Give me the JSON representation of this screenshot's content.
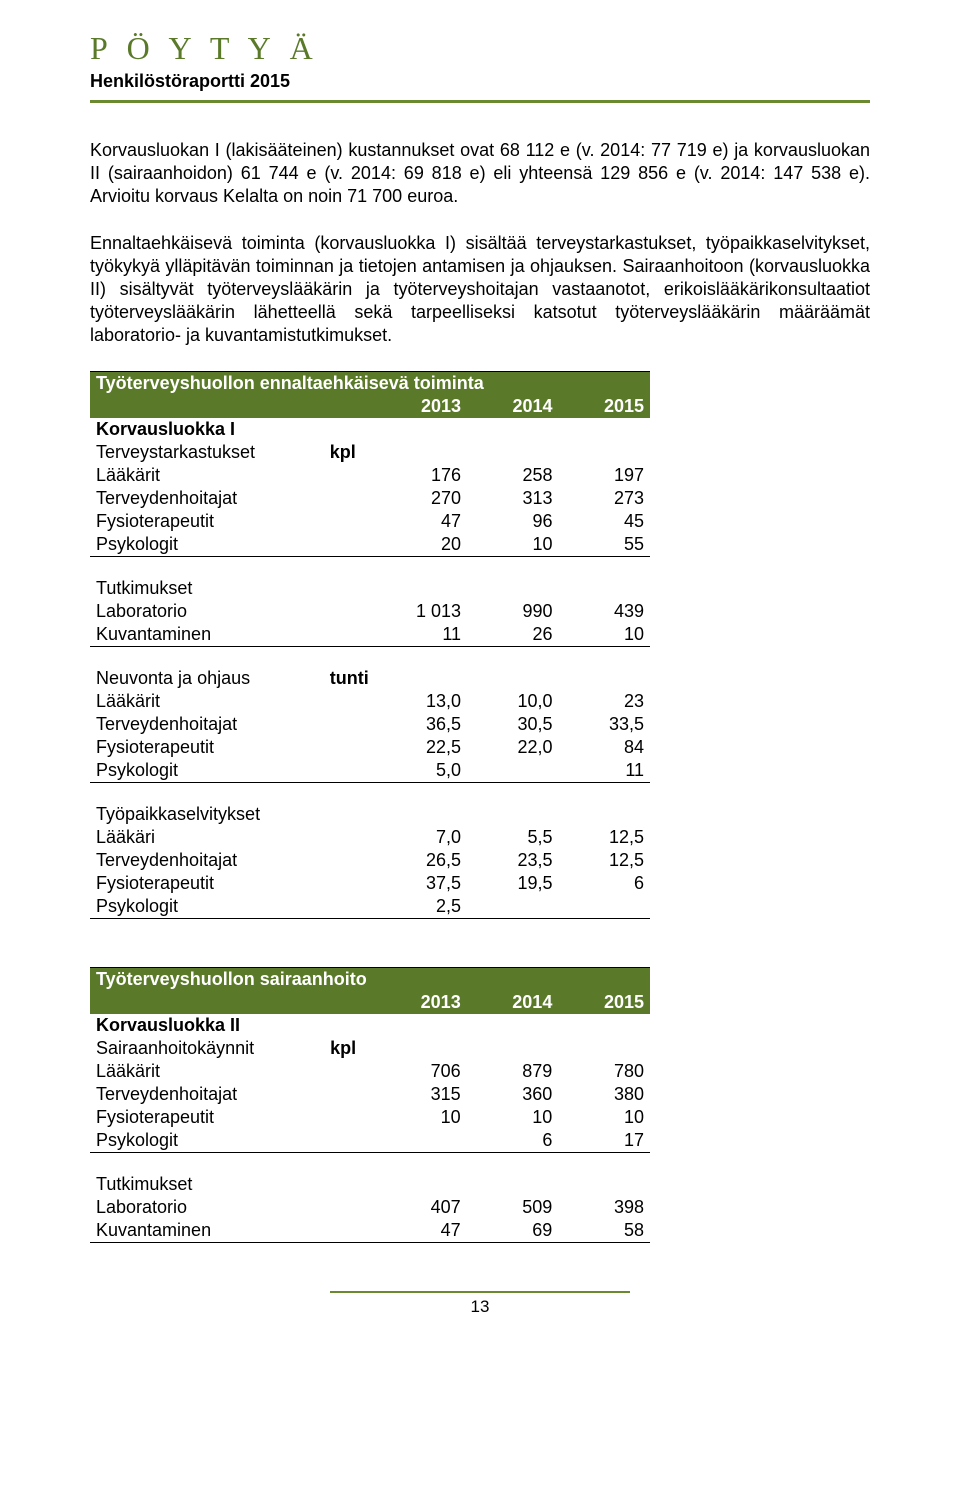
{
  "header": {
    "logo": "P Ö Y T Y Ä",
    "subtitle": "Henkilöstöraportti 2015"
  },
  "colors": {
    "accent": "#5a7a2a",
    "rule": "#6b8a30",
    "text": "#000000",
    "bg": "#ffffff"
  },
  "paragraphs": {
    "p1": "Korvausluokan I (lakisääteinen) kustannukset ovat 68 112 e (v. 2014: 77 719 e) ja korvausluokan II (sairaanhoidon) 61 744 e (v. 2014: 69 818 e) eli yhteensä 129 856 e (v. 2014: 147 538 e). Arvioitu korvaus Kelalta on noin 71 700 euroa.",
    "p2": "Ennaltaehkäisevä toiminta (korvausluokka I) sisältää terveystarkastukset, työpaikkaselvitykset, työkykyä ylläpitävän toiminnan ja tietojen antamisen ja ohjauksen. Sairaanhoitoon (korvausluokka II) sisältyvät työterveyslääkärin ja työterveyshoitajan vastaanotot, erikoislääkärikonsultaatiot työterveyslääkärin lähetteellä sekä tarpeelliseksi katsotut työterveyslääkärin määräämät laboratorio- ja kuvantamistutkimukset."
  },
  "table1": {
    "title": "Työterveyshuollon ennaltaehkäisevä toiminta",
    "years": [
      "2013",
      "2014",
      "2015"
    ],
    "section1_head": "Korvausluokka I",
    "section1_sub": "Terveystarkastukset",
    "unit_kpl": "kpl",
    "unit_tunti": "tunti",
    "rows_tt": [
      {
        "label": "Lääkärit",
        "v": [
          "176",
          "258",
          "197"
        ]
      },
      {
        "label": "Terveydenhoitajat",
        "v": [
          "270",
          "313",
          "273"
        ]
      },
      {
        "label": "Fysioterapeutit",
        "v": [
          "47",
          "96",
          "45"
        ]
      },
      {
        "label": "Psykologit",
        "v": [
          "20",
          "10",
          "55"
        ]
      }
    ],
    "section_tutk": "Tutkimukset",
    "rows_tutk": [
      {
        "label": "Laboratorio",
        "v": [
          "1 013",
          "990",
          "439"
        ]
      },
      {
        "label": "Kuvantaminen",
        "v": [
          "11",
          "26",
          "10"
        ]
      }
    ],
    "section_neuv": "Neuvonta ja ohjaus",
    "rows_neuv": [
      {
        "label": "Lääkärit",
        "v": [
          "13,0",
          "10,0",
          "23"
        ]
      },
      {
        "label": "Terveydenhoitajat",
        "v": [
          "36,5",
          "30,5",
          "33,5"
        ]
      },
      {
        "label": "Fysioterapeutit",
        "v": [
          "22,5",
          "22,0",
          "84"
        ]
      },
      {
        "label": "Psykologit",
        "v": [
          "5,0",
          "",
          "11"
        ]
      }
    ],
    "section_tps": "Työpaikkaselvitykset",
    "rows_tps": [
      {
        "label": "Lääkäri",
        "v": [
          "7,0",
          "5,5",
          "12,5"
        ]
      },
      {
        "label": "Terveydenhoitajat",
        "v": [
          "26,5",
          "23,5",
          "12,5"
        ]
      },
      {
        "label": "Fysioterapeutit",
        "v": [
          "37,5",
          "19,5",
          "6"
        ]
      },
      {
        "label": "Psykologit",
        "v": [
          "2,5",
          "",
          ""
        ]
      }
    ]
  },
  "table2": {
    "title": "Työterveyshuollon sairaanhoito",
    "years": [
      "2013",
      "2014",
      "2015"
    ],
    "section_head": "Korvausluokka II",
    "section_sub": "Sairaanhoitokäynnit",
    "unit_kpl": "kpl",
    "rows_sh": [
      {
        "label": "Lääkärit",
        "v": [
          "706",
          "879",
          "780"
        ]
      },
      {
        "label": "Terveydenhoitajat",
        "v": [
          "315",
          "360",
          "380"
        ]
      },
      {
        "label": "Fysioterapeutit",
        "v": [
          "10",
          "10",
          "10"
        ]
      },
      {
        "label": "Psykologit",
        "v": [
          "",
          "6",
          "17"
        ]
      }
    ],
    "section_tutk": "Tutkimukset",
    "rows_tutk": [
      {
        "label": "Laboratorio",
        "v": [
          "407",
          "509",
          "398"
        ]
      },
      {
        "label": "Kuvantaminen",
        "v": [
          "47",
          "69",
          "58"
        ]
      }
    ]
  },
  "page_number": "13"
}
